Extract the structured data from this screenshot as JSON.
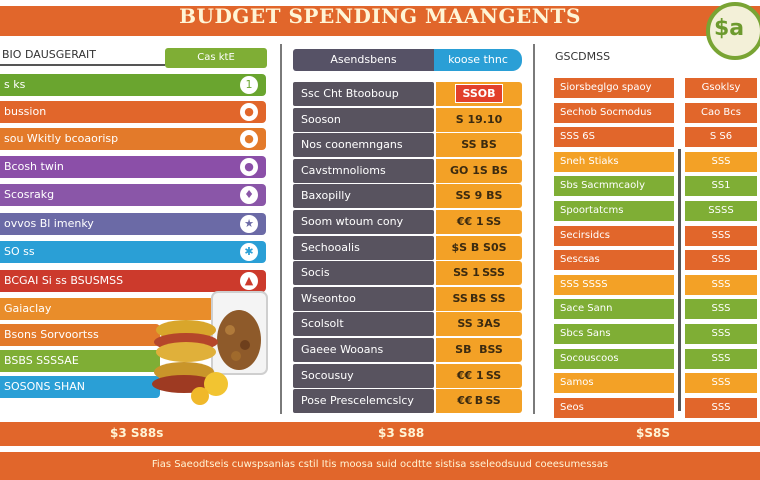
{
  "banner": {
    "title": "BUDGET SPENDING MAANGENTS",
    "badge": "$a"
  },
  "left": {
    "header": "BIO DAUSGERAIT",
    "pill": "Cas ktE",
    "rows": [
      {
        "label": "s ks",
        "color": "#6aa52f",
        "icon": "1"
      },
      {
        "label": "bussion",
        "color": "#e1662b",
        "icon": "●"
      },
      {
        "label": "sou Wkitly bcoaorisp",
        "color": "#e37a2a",
        "icon": "●"
      },
      {
        "label": "Bcosh twin",
        "color": "#8b4fa8",
        "icon": "●"
      },
      {
        "label": "Scosrakg",
        "color": "#8a56a8",
        "icon": "♦"
      },
      {
        "label": "ovvos Bl imenky",
        "color": "#6b6aa6",
        "icon": "★"
      },
      {
        "label": "SO ss",
        "color": "#2a9fd6",
        "icon": "✱"
      },
      {
        "label": "BCGAI Si ss BSUSMSS",
        "color": "#cc3a2c",
        "icon": "▲"
      },
      {
        "label": "Gaiaclay",
        "color": "#e98d2a",
        "icon": ""
      },
      {
        "label": "Bsons Sorvoortss",
        "color": "#e37a2a",
        "icon": ""
      },
      {
        "label": "BSBS SSSSAE",
        "color": "#7fae35",
        "icon": ""
      },
      {
        "label": "SOSONS SHAN",
        "color": "#2a9fd6",
        "icon": ""
      }
    ]
  },
  "middle": {
    "head_left": "Asendsbens",
    "head_right": "koose thnc",
    "rows": [
      {
        "label": "Ssc Cht Btooboup",
        "value": "SSOB",
        "highlight": true
      },
      {
        "label": "Sooson",
        "value": "S 19.10"
      },
      {
        "label": "Nos coonemngans",
        "value": "SS BS"
      },
      {
        "label": "Cavstmnolioms",
        "value": "GO 1S BS"
      },
      {
        "label": "Baxopilly",
        "value": "SS 9 BS"
      },
      {
        "label": "Soom wtoum cony",
        "value": "€€ 1 SS"
      },
      {
        "label": "Sechooalis",
        "value": "$S B S0S"
      },
      {
        "label": "Socis",
        "value": "SS 1 SSS"
      },
      {
        "label": "Wseontoo",
        "value": "SS BS SS"
      },
      {
        "label": "Scolsolt",
        "value": "SS 3AS"
      },
      {
        "label": "Gaeee Wooans",
        "value": "SB  BSS"
      },
      {
        "label": "Socousuy",
        "value": "€€ 1 SS"
      },
      {
        "label": "Pose Prescelemcslcy",
        "value": "€€ B SS"
      }
    ]
  },
  "right": {
    "header": "GSCDMSS",
    "rows": [
      {
        "a": "Siorsbeglgo spaoy",
        "b": "Gsoklsy",
        "ca": "#e1662b",
        "cb": "#e1662b"
      },
      {
        "a": "Sechob Socmodus",
        "b": "Cao Bcs",
        "ca": "#e1662b",
        "cb": "#e1662b"
      },
      {
        "a": "SSS 6S",
        "b": "S S6",
        "ca": "#e1662b",
        "cb": "#e1662b"
      },
      {
        "a": "Sneh Stiaks",
        "b": "SSS",
        "ca": "#f3a126",
        "cb": "#f3a126"
      },
      {
        "a": "Sbs Sacmmcaoly",
        "b": "SS1",
        "ca": "#7fae35",
        "cb": "#7fae35"
      },
      {
        "a": "Spoortatcms",
        "b": "SSSS",
        "ca": "#7fae35",
        "cb": "#7fae35"
      },
      {
        "a": "Secirsidcs",
        "b": "SSS",
        "ca": "#e1662b",
        "cb": "#e1662b"
      },
      {
        "a": "Sescsas",
        "b": "SSS",
        "ca": "#e1662b",
        "cb": "#e1662b"
      },
      {
        "a": "SSS SSSS",
        "b": "SSS",
        "ca": "#f3a126",
        "cb": "#f3a126"
      },
      {
        "a": "Sace Sann",
        "b": "SSS",
        "ca": "#7fae35",
        "cb": "#7fae35"
      },
      {
        "a": "Sbcs Sans",
        "b": "SSS",
        "ca": "#7fae35",
        "cb": "#7fae35"
      },
      {
        "a": "Socouscoos",
        "b": "SSS",
        "ca": "#7fae35",
        "cb": "#7fae35"
      },
      {
        "a": "Samos",
        "b": "SSS",
        "ca": "#f3a126",
        "cb": "#f3a126"
      },
      {
        "a": "Seos",
        "b": "SSS",
        "ca": "#e1662b",
        "cb": "#e1662b"
      }
    ]
  },
  "totals": {
    "left": "$3 S88s",
    "middle": "$3 S88",
    "right": "$S8S"
  },
  "footer": "Fias Saeodtseis cuwspsanias cstil Itis moosa suid ocdtte sistisa sseleodsuud coeesumessas"
}
